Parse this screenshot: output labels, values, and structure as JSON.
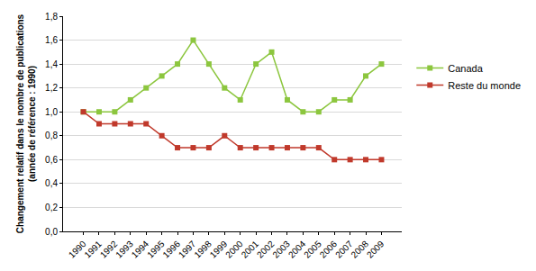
{
  "chart_data": {
    "type": "line",
    "y_label": [
      "Changement relatif dans le nombre de publications",
      "(année de référence : 1990)"
    ],
    "categories": [
      "1990",
      "1991",
      "1992",
      "1993",
      "1994",
      "1995",
      "1996",
      "1997",
      "1998",
      "1999",
      "2000",
      "2001",
      "2002",
      "2003",
      "2004",
      "2005",
      "2006",
      "2007",
      "2008",
      "2009"
    ],
    "series": [
      {
        "name": "Canada",
        "color": "#8cc63e",
        "marker": "square",
        "values": [
          1.0,
          1.0,
          1.0,
          1.1,
          1.2,
          1.3,
          1.4,
          1.6,
          1.4,
          1.2,
          1.1,
          1.4,
          1.5,
          1.1,
          1.0,
          1.0,
          1.1,
          1.1,
          1.3,
          1.4
        ]
      },
      {
        "name": "Reste du monde",
        "color": "#c0392b",
        "marker": "square",
        "values": [
          1.0,
          0.9,
          0.9,
          0.9,
          0.9,
          0.8,
          0.7,
          0.7,
          0.7,
          0.8,
          0.7,
          0.7,
          0.7,
          0.7,
          0.7,
          0.7,
          0.6,
          0.6,
          0.6,
          0.6
        ]
      }
    ],
    "ylim": [
      0,
      1.8
    ],
    "yticks": [
      {
        "value": 0,
        "label": "0,0"
      },
      {
        "value": 0.2,
        "label": "0,2"
      },
      {
        "value": 0.4,
        "label": "0,4"
      },
      {
        "value": 0.6,
        "label": "0,6"
      },
      {
        "value": 0.8,
        "label": "0,8"
      },
      {
        "value": 1.0,
        "label": "1,0"
      },
      {
        "value": 1.2,
        "label": "1,2"
      },
      {
        "value": 1.4,
        "label": "1,4"
      },
      {
        "value": 1.6,
        "label": "1,6"
      },
      {
        "value": 1.8,
        "label": "1,8"
      }
    ],
    "grid": true,
    "legend": "right"
  }
}
